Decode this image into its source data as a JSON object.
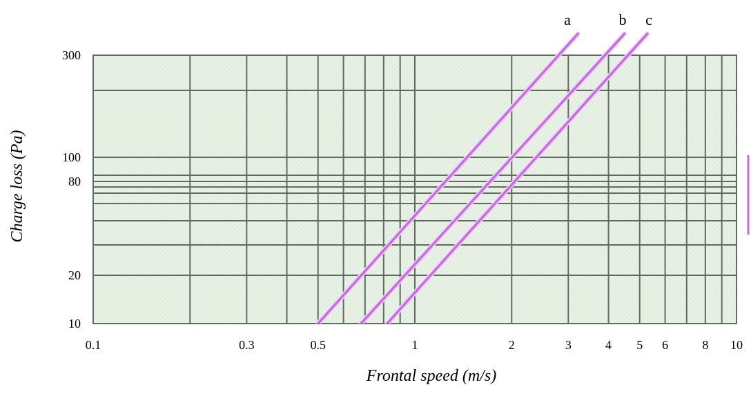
{
  "chart_data": {
    "type": "line",
    "title": "",
    "xlabel": "Frontal speed (m/s)",
    "ylabel": "Charge loss (Pa)",
    "xscale": "log",
    "xlim": [
      0.1,
      10
    ],
    "ylim": [
      10,
      300
    ],
    "grid": true,
    "x_tick_labels": [
      "0.1",
      "0.3",
      "0.5",
      "1",
      "2",
      "3",
      "4",
      "5",
      "6",
      "8",
      "10"
    ],
    "x_tick_values": [
      0.1,
      0.3,
      0.5,
      1,
      2,
      3,
      4,
      5,
      6,
      8,
      10
    ],
    "y_tick_labels": [
      "300",
      "100",
      "80",
      "20",
      "10"
    ],
    "y_tick_values": [
      300,
      100,
      80,
      20,
      10
    ],
    "x_gridlines": [
      0.1,
      0.2,
      0.3,
      0.4,
      0.5,
      0.6,
      0.7,
      0.8,
      0.9,
      1,
      2,
      3,
      4,
      5,
      6,
      7,
      8,
      9,
      10
    ],
    "y_gridlines": [
      10,
      20,
      30,
      40,
      50,
      60,
      70,
      80,
      90,
      100,
      200,
      300
    ],
    "series": [
      {
        "name": "a",
        "color": "#c86ae8",
        "points": [
          [
            0.5,
            10
          ],
          [
            2.8,
            300
          ]
        ]
      },
      {
        "name": "b",
        "color": "#c86ae8",
        "points": [
          [
            0.68,
            10
          ],
          [
            3.9,
            300
          ]
        ]
      },
      {
        "name": "c",
        "color": "#c86ae8",
        "points": [
          [
            0.82,
            10
          ],
          [
            4.6,
            300
          ]
        ]
      }
    ],
    "colors": {
      "plot_background": "#e9f2e6",
      "gridline": "#5f6b61",
      "curve": "#c86ae8"
    }
  }
}
